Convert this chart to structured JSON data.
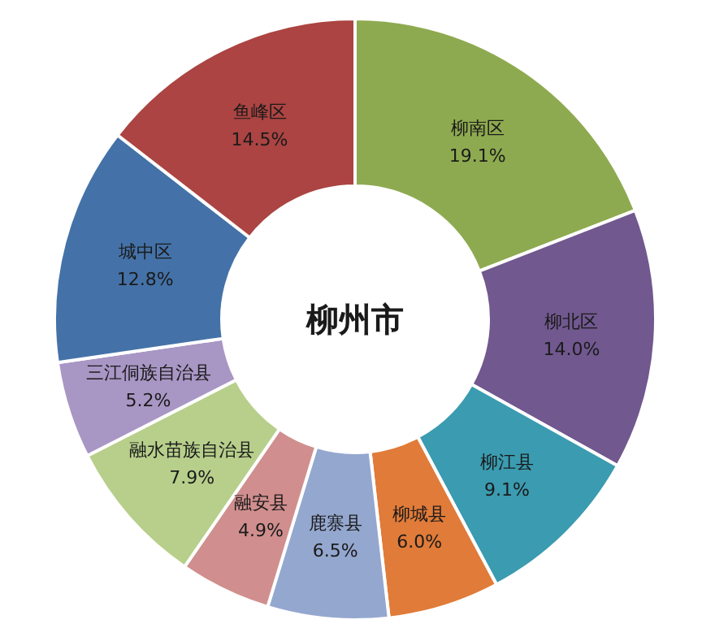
{
  "chart_data": {
    "type": "donut",
    "title": "柳州市",
    "categories": [
      "柳南区",
      "柳北区",
      "柳江县",
      "柳城县",
      "鹿寨县",
      "融安县",
      "融水苗族自治县",
      "三江侗族自治县",
      "城中区",
      "鱼峰区"
    ],
    "values": [
      19.1,
      14.0,
      9.1,
      6.0,
      6.5,
      4.9,
      7.9,
      5.2,
      12.8,
      14.5
    ],
    "colors": [
      "#8eaa50",
      "#71588f",
      "#3b9bb0",
      "#e07b39",
      "#94a7cf",
      "#d08f8e",
      "#b7cf8b",
      "#a896c4",
      "#4472a8",
      "#ab4442"
    ],
    "value_labels": [
      "19.1%",
      "14.0%",
      "9.1%",
      "6.0%",
      "6.5%",
      "4.9%",
      "7.9%",
      "5.2%",
      "12.8%",
      "14.5%"
    ]
  }
}
